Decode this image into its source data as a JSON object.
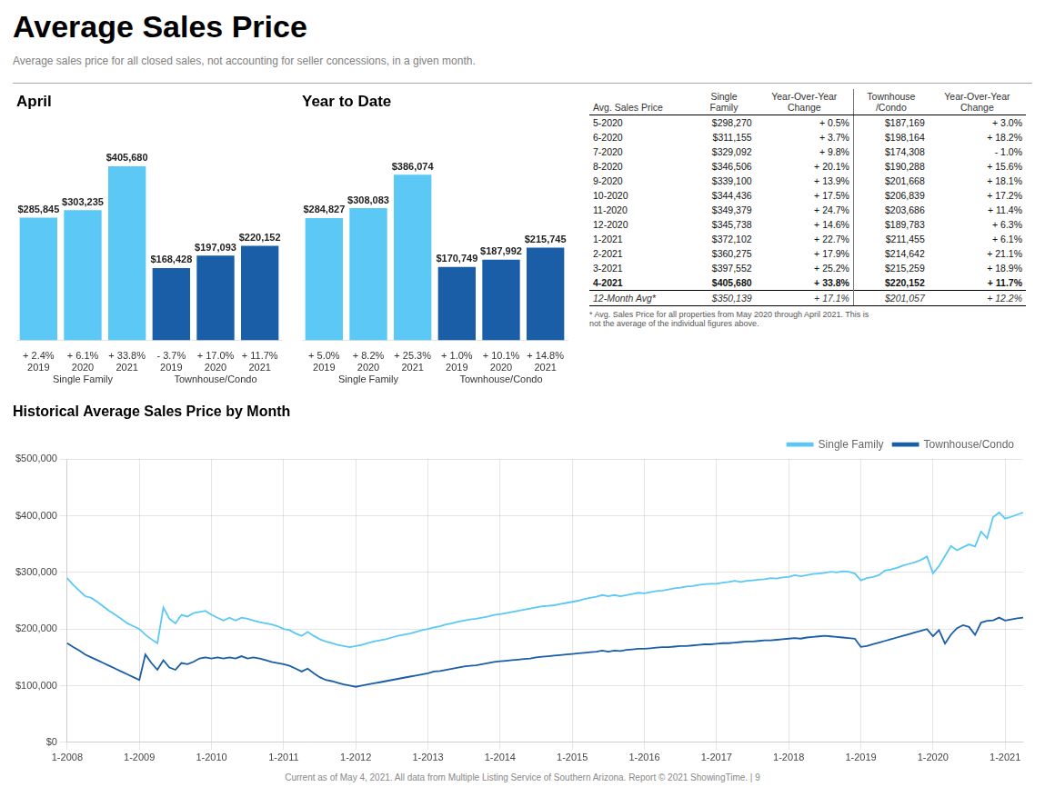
{
  "title": "Average Sales Price",
  "subtitle": "Average sales price for all closed sales, not accounting for seller concessions, in a given month.",
  "footer": "Current as of May 4, 2021. All data from Multiple Listing Service of Southern Arizona. Report © 2021 ShowingTime.   | 9",
  "table": {
    "columns": [
      "Avg. Sales Price",
      "Single\nFamily",
      "Year-Over-Year\nChange",
      "Townhouse\n/Condo",
      "Year-Over-Year\nChange"
    ],
    "rows": [
      [
        "5-2020",
        "$298,270",
        "+ 0.5%",
        "$187,169",
        "+ 3.0%"
      ],
      [
        "6-2020",
        "$311,155",
        "+ 3.7%",
        "$198,164",
        "+ 18.2%"
      ],
      [
        "7-2020",
        "$329,092",
        "+ 9.8%",
        "$174,308",
        "- 1.0%"
      ],
      [
        "8-2020",
        "$346,506",
        "+ 20.1%",
        "$190,288",
        "+ 15.6%"
      ],
      [
        "9-2020",
        "$339,100",
        "+ 13.9%",
        "$201,668",
        "+ 18.1%"
      ],
      [
        "10-2020",
        "$344,436",
        "+ 17.5%",
        "$206,839",
        "+ 17.2%"
      ],
      [
        "11-2020",
        "$349,379",
        "+ 24.7%",
        "$203,686",
        "+ 11.4%"
      ],
      [
        "12-2020",
        "$345,738",
        "+ 14.6%",
        "$189,783",
        "+ 6.3%"
      ],
      [
        "1-2021",
        "$372,102",
        "+ 22.7%",
        "$211,455",
        "+ 6.1%"
      ],
      [
        "2-2021",
        "$360,275",
        "+ 17.9%",
        "$214,642",
        "+ 21.1%"
      ],
      [
        "3-2021",
        "$397,552",
        "+ 25.2%",
        "$215,259",
        "+ 18.9%"
      ],
      [
        "4-2021",
        "$405,680",
        "+ 33.8%",
        "$220,152",
        "+ 11.7%"
      ]
    ],
    "average_row": [
      "12-Month Avg*",
      "$350,139",
      "+ 17.1%",
      "$201,057",
      "+ 12.2%"
    ],
    "note": "* Avg. Sales Price for all properties from May 2020 through April 2021. This is\nnot the average of the individual figures above."
  },
  "chart_data": [
    {
      "type": "bar",
      "title": "April",
      "categories": [
        "2019",
        "2020",
        "2021"
      ],
      "series": [
        {
          "name": "Single Family",
          "color": "#5BC8F5",
          "values": [
            285845,
            303235,
            405680
          ],
          "value_labels": [
            "$285,845",
            "$303,235",
            "$405,680"
          ],
          "change_labels": [
            "+ 2.4%",
            "+ 6.1%",
            "+ 33.8%"
          ]
        },
        {
          "name": "Townhouse/Condo",
          "color": "#1A5EA8",
          "values": [
            168428,
            197093,
            220152
          ],
          "value_labels": [
            "$168,428",
            "$197,093",
            "$220,152"
          ],
          "change_labels": [
            "- 3.7%",
            "+ 17.0%",
            "+ 11.7%"
          ]
        }
      ],
      "ylim": [
        0,
        500000
      ],
      "data_labels": true,
      "tick_labels": "x",
      "grid": false
    },
    {
      "type": "bar",
      "title": "Year to Date",
      "categories": [
        "2019",
        "2020",
        "2021"
      ],
      "series": [
        {
          "name": "Single Family",
          "color": "#5BC8F5",
          "values": [
            284827,
            308083,
            386074
          ],
          "value_labels": [
            "$284,827",
            "$308,083",
            "$386,074"
          ],
          "change_labels": [
            "+ 5.0%",
            "+ 8.2%",
            "+ 25.3%"
          ]
        },
        {
          "name": "Townhouse/Condo",
          "color": "#1A5EA8",
          "values": [
            170749,
            187992,
            215745
          ],
          "value_labels": [
            "$170,749",
            "$187,992",
            "$215,745"
          ],
          "change_labels": [
            "+ 1.0%",
            "+ 10.1%",
            "+ 14.8%"
          ]
        }
      ],
      "ylim": [
        0,
        500000
      ],
      "data_labels": true,
      "tick_labels": "x",
      "grid": false
    },
    {
      "type": "line",
      "title": "Historical Average Sales Price by Month",
      "categories": [
        "1-2008",
        null,
        null,
        null,
        null,
        null,
        null,
        null,
        null,
        null,
        null,
        null,
        "1-2009",
        null,
        null,
        null,
        null,
        null,
        null,
        null,
        null,
        null,
        null,
        null,
        "1-2010",
        null,
        null,
        null,
        null,
        null,
        null,
        null,
        null,
        null,
        null,
        null,
        "1-2011",
        null,
        null,
        null,
        null,
        null,
        null,
        null,
        null,
        null,
        null,
        null,
        "1-2012",
        null,
        null,
        null,
        null,
        null,
        null,
        null,
        null,
        null,
        null,
        null,
        "1-2013",
        null,
        null,
        null,
        null,
        null,
        null,
        null,
        null,
        null,
        null,
        null,
        "1-2014",
        null,
        null,
        null,
        null,
        null,
        null,
        null,
        null,
        null,
        null,
        null,
        "1-2015",
        null,
        null,
        null,
        null,
        null,
        null,
        null,
        null,
        null,
        null,
        null,
        "1-2016",
        null,
        null,
        null,
        null,
        null,
        null,
        null,
        null,
        null,
        null,
        null,
        "1-2017",
        null,
        null,
        null,
        null,
        null,
        null,
        null,
        null,
        null,
        null,
        null,
        "1-2018",
        null,
        null,
        null,
        null,
        null,
        null,
        null,
        null,
        null,
        null,
        null,
        "1-2019",
        null,
        null,
        null,
        null,
        null,
        null,
        null,
        null,
        null,
        null,
        null,
        "1-2020",
        null,
        null,
        null,
        null,
        null,
        null,
        null,
        null,
        null,
        null,
        null,
        "1-2021",
        null,
        null,
        null
      ],
      "series": [
        {
          "name": "Single Family",
          "color": "#5BC8F5",
          "values": [
            290000,
            278000,
            268000,
            258000,
            255000,
            248000,
            240000,
            232000,
            225000,
            218000,
            210000,
            205000,
            200000,
            190000,
            182000,
            175000,
            238000,
            218000,
            210000,
            225000,
            222000,
            228000,
            230000,
            232000,
            225000,
            220000,
            215000,
            220000,
            215000,
            220000,
            218000,
            215000,
            212000,
            210000,
            208000,
            205000,
            200000,
            198000,
            192000,
            188000,
            195000,
            188000,
            182000,
            178000,
            175000,
            172000,
            170000,
            168000,
            170000,
            172000,
            175000,
            178000,
            180000,
            182000,
            185000,
            188000,
            190000,
            192000,
            195000,
            198000,
            200000,
            203000,
            205000,
            208000,
            210000,
            213000,
            215000,
            217000,
            218000,
            220000,
            222000,
            225000,
            226000,
            228000,
            230000,
            232000,
            234000,
            236000,
            238000,
            240000,
            241000,
            242000,
            244000,
            246000,
            248000,
            250000,
            253000,
            255000,
            257000,
            260000,
            258000,
            260000,
            258000,
            260000,
            262000,
            264000,
            263000,
            265000,
            267000,
            268000,
            270000,
            272000,
            273000,
            275000,
            276000,
            278000,
            279000,
            280000,
            280000,
            282000,
            283000,
            285000,
            283000,
            285000,
            286000,
            287000,
            288000,
            290000,
            289000,
            291000,
            292000,
            295000,
            293000,
            295000,
            297000,
            298000,
            299000,
            301000,
            300000,
            302000,
            301000,
            298000,
            285845,
            290000,
            292000,
            295000,
            303235,
            305000,
            308000,
            312000,
            315000,
            318000,
            322000,
            328000,
            298270,
            311155,
            329092,
            346506,
            339100,
            344436,
            349379,
            345738,
            372102,
            360275,
            397552,
            405680,
            395000,
            398000,
            402000,
            405680
          ]
        },
        {
          "name": "Townhouse/Condo",
          "color": "#1A5EA8",
          "values": [
            175000,
            168000,
            162000,
            155000,
            150000,
            145000,
            140000,
            135000,
            130000,
            125000,
            120000,
            115000,
            110000,
            155000,
            140000,
            128000,
            145000,
            132000,
            128000,
            140000,
            138000,
            142000,
            148000,
            150000,
            148000,
            150000,
            148000,
            150000,
            148000,
            152000,
            148000,
            150000,
            148000,
            145000,
            142000,
            140000,
            138000,
            135000,
            130000,
            125000,
            130000,
            122000,
            115000,
            110000,
            108000,
            105000,
            102000,
            100000,
            98000,
            100000,
            102000,
            104000,
            106000,
            108000,
            110000,
            112000,
            114000,
            116000,
            118000,
            120000,
            122000,
            125000,
            126000,
            128000,
            130000,
            132000,
            134000,
            135000,
            136000,
            138000,
            140000,
            142000,
            143000,
            144000,
            145000,
            146000,
            147000,
            148000,
            150000,
            151000,
            152000,
            153000,
            154000,
            155000,
            156000,
            157000,
            158000,
            159000,
            160000,
            162000,
            160000,
            162000,
            161000,
            163000,
            164000,
            165000,
            165000,
            166000,
            167000,
            168000,
            168000,
            169000,
            170000,
            170000,
            171000,
            172000,
            173000,
            173000,
            174000,
            175000,
            175000,
            176000,
            177000,
            178000,
            178000,
            179000,
            180000,
            180000,
            181000,
            182000,
            183000,
            184000,
            183000,
            185000,
            186000,
            187000,
            188000,
            187000,
            186000,
            185000,
            184000,
            183000,
            168428,
            170000,
            173000,
            176000,
            179000,
            182000,
            185000,
            188000,
            191000,
            194000,
            197000,
            200000,
            187169,
            198164,
            174308,
            190288,
            201668,
            206839,
            203686,
            189783,
            211455,
            214642,
            215259,
            220152,
            215000,
            217000,
            219000,
            220152
          ]
        }
      ],
      "ylim": [
        0,
        500000
      ],
      "yticks": [
        {
          "value": 0,
          "label": "$0"
        },
        {
          "value": 100000,
          "label": "$100,000"
        },
        {
          "value": 200000,
          "label": "$200,000"
        },
        {
          "value": 300000,
          "label": "$300,000"
        },
        {
          "value": 400000,
          "label": "$400,000"
        },
        {
          "value": 500000,
          "label": "$500,000"
        }
      ],
      "grid": true,
      "legend": "upper right"
    }
  ]
}
